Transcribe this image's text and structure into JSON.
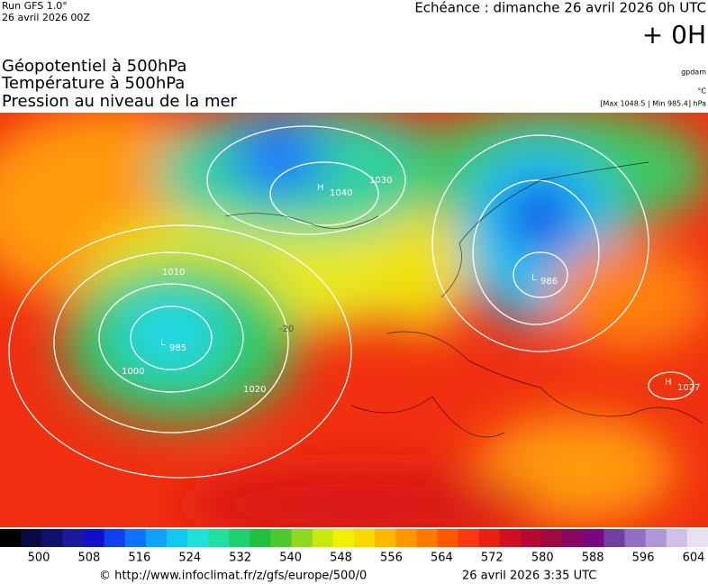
{
  "header": {
    "run": "Run GFS 1.0°",
    "run_date": "26 avril 2026 00Z",
    "echeance": "Echéance : dimanche 26 avril 2026 0h UTC",
    "offset": "+ 0H",
    "fields": [
      "Géopotentiel à 500hPa",
      "Température à 500hPa",
      "Pression au niveau de la mer"
    ],
    "units": [
      "gpdam",
      "°C"
    ],
    "extremes": "[Max 1048.5 | Min 985.4] hPa"
  },
  "map": {
    "labels": [
      "L",
      "985",
      "L",
      "986",
      "H",
      "1040",
      "H",
      "1027",
      "1000",
      "1010",
      "1020",
      "1030",
      "-20"
    ]
  },
  "colorbar": {
    "ticks": [
      500,
      508,
      516,
      524,
      532,
      540,
      548,
      556,
      564,
      572,
      580,
      588,
      596,
      604
    ],
    "colors": [
      "#000000",
      "#0a0a40",
      "#10106a",
      "#1a1a9a",
      "#1010c8",
      "#1040f0",
      "#1070ff",
      "#10a0ff",
      "#10c8f0",
      "#20e0d8",
      "#20e0a0",
      "#20d070",
      "#20c040",
      "#50c830",
      "#90d820",
      "#c8e810",
      "#f0f000",
      "#f8d800",
      "#ffb800",
      "#ff9800",
      "#ff7800",
      "#ff5800",
      "#f83810",
      "#e82010",
      "#d01020",
      "#b80830",
      "#a00840",
      "#880860",
      "#780880",
      "#7040a0",
      "#9070c0",
      "#b098d8",
      "#d0c0e8",
      "#e8e0f0"
    ]
  },
  "footer": {
    "url": "© http://www.infoclimat.fr/z/gfs/europe/500/0",
    "generated": "26 avril 2026  3:35 UTC"
  }
}
